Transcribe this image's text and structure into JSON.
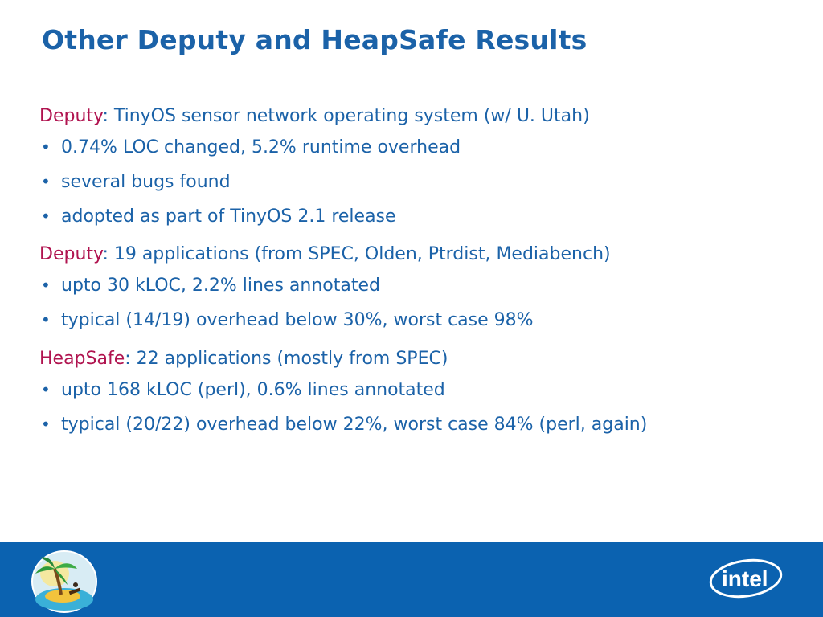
{
  "slide": {
    "title": "Other Deputy and HeapSafe Results",
    "sections": [
      {
        "keyword": "Deputy",
        "rest": ": TinyOS sensor network operating system (w/ U. Utah)",
        "bullets": [
          "0.74% LOC changed, 5.2% runtime overhead",
          "several bugs found",
          "adopted as part of TinyOS 2.1 release"
        ]
      },
      {
        "keyword": "Deputy",
        "rest": ": 19 applications (from SPEC, Olden, Ptrdist, Mediabench)",
        "bullets": [
          "upto 30 kLOC, 2.2% lines annotated",
          "typical (14/19) overhead below 30%, worst case 98%"
        ]
      },
      {
        "keyword": "HeapSafe",
        "rest": ": 22 applications (mostly from SPEC)",
        "bullets": [
          "upto 168 kLOC (perl), 0.6% lines annotated",
          "typical (20/22) overhead below 22%, worst case 84% (perl, again)"
        ]
      }
    ],
    "bullet_glyph": "•"
  },
  "footer": {
    "brand_logo_text": "intel",
    "colors": {
      "bar": "#0b62b0",
      "text": "#1b62a8",
      "keyword": "#b0134f"
    },
    "icons": [
      "island-palm-logo",
      "intel-logo"
    ]
  }
}
